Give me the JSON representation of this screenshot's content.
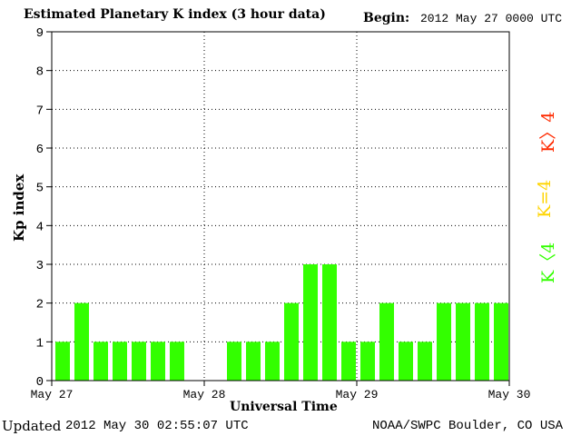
{
  "header": {
    "title": "Estimated Planetary K index (3 hour data)",
    "begin_label": "Begin:",
    "begin_value": "2012 May 27 0000 UTC"
  },
  "footer": {
    "updated_label": "Updated",
    "updated_value": "2012 May 30 02:55:07 UTC",
    "credit": "NOAA/SWPC Boulder, CO USA"
  },
  "legend": {
    "k_high": "K〉4",
    "k_equal": "K=4",
    "k_low": "K〈4",
    "colors": {
      "high": "#ff2a00",
      "equal": "#ffd400",
      "low": "#33ff00"
    }
  },
  "chart_data": {
    "type": "bar",
    "ylabel": "Kp index",
    "xlabel": "Universal Time",
    "ylim": [
      0,
      9
    ],
    "yticks": [
      "0",
      "1",
      "2",
      "3",
      "4",
      "5",
      "6",
      "7",
      "8",
      "9"
    ],
    "x_tick_labels": [
      "May 27",
      "May 28",
      "May 29",
      "May 30"
    ],
    "bar_color": "#33ff00",
    "grid": true,
    "values": [
      1,
      2,
      1,
      1,
      1,
      1,
      1,
      0,
      0,
      1,
      1,
      1,
      2,
      3,
      3,
      1,
      1,
      2,
      1,
      1,
      2,
      2,
      2,
      2
    ]
  }
}
